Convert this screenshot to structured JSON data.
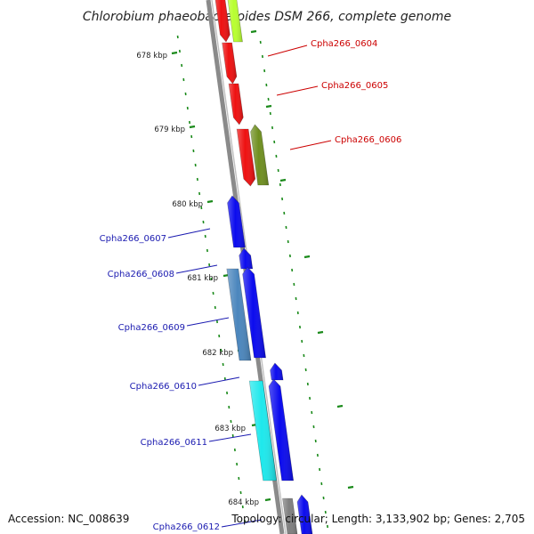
{
  "title": "Chlorobium phaeobacteroides DSM 266, complete genome",
  "accession": "Accession: NC_008639",
  "topology": "Topology: circular; Length: 3,133,902 bp; Genes: 2,705",
  "colors": {
    "red": "#ee1111",
    "lime": "#b8ff30",
    "olive": "#6f8f20",
    "blue": "#0b0bee",
    "steelblue": "#4b86bd",
    "cyan": "#1ee8ec",
    "gray": "#7f7f7f",
    "tick": "#1a8a1a",
    "label_red": "#cc0000",
    "label_blue": "#1a1ab0"
  },
  "tick_labels": [
    "678 kbp",
    "679 kbp",
    "680 kbp",
    "681 kbp",
    "682 kbp",
    "683 kbp",
    "684 kbp"
  ],
  "gene_labels": [
    {
      "text": "Cpha266_0604",
      "color": "label_red"
    },
    {
      "text": "Cpha266_0605",
      "color": "label_red"
    },
    {
      "text": "Cpha266_0606",
      "color": "label_red"
    },
    {
      "text": "Cpha266_0607",
      "color": "label_blue"
    },
    {
      "text": "Cpha266_0608",
      "color": "label_blue"
    },
    {
      "text": "Cpha266_0609",
      "color": "label_blue"
    },
    {
      "text": "Cpha266_0610",
      "color": "label_blue"
    },
    {
      "text": "Cpha266_0611",
      "color": "label_blue"
    },
    {
      "text": "Cpha266_0612",
      "color": "label_blue"
    }
  ]
}
